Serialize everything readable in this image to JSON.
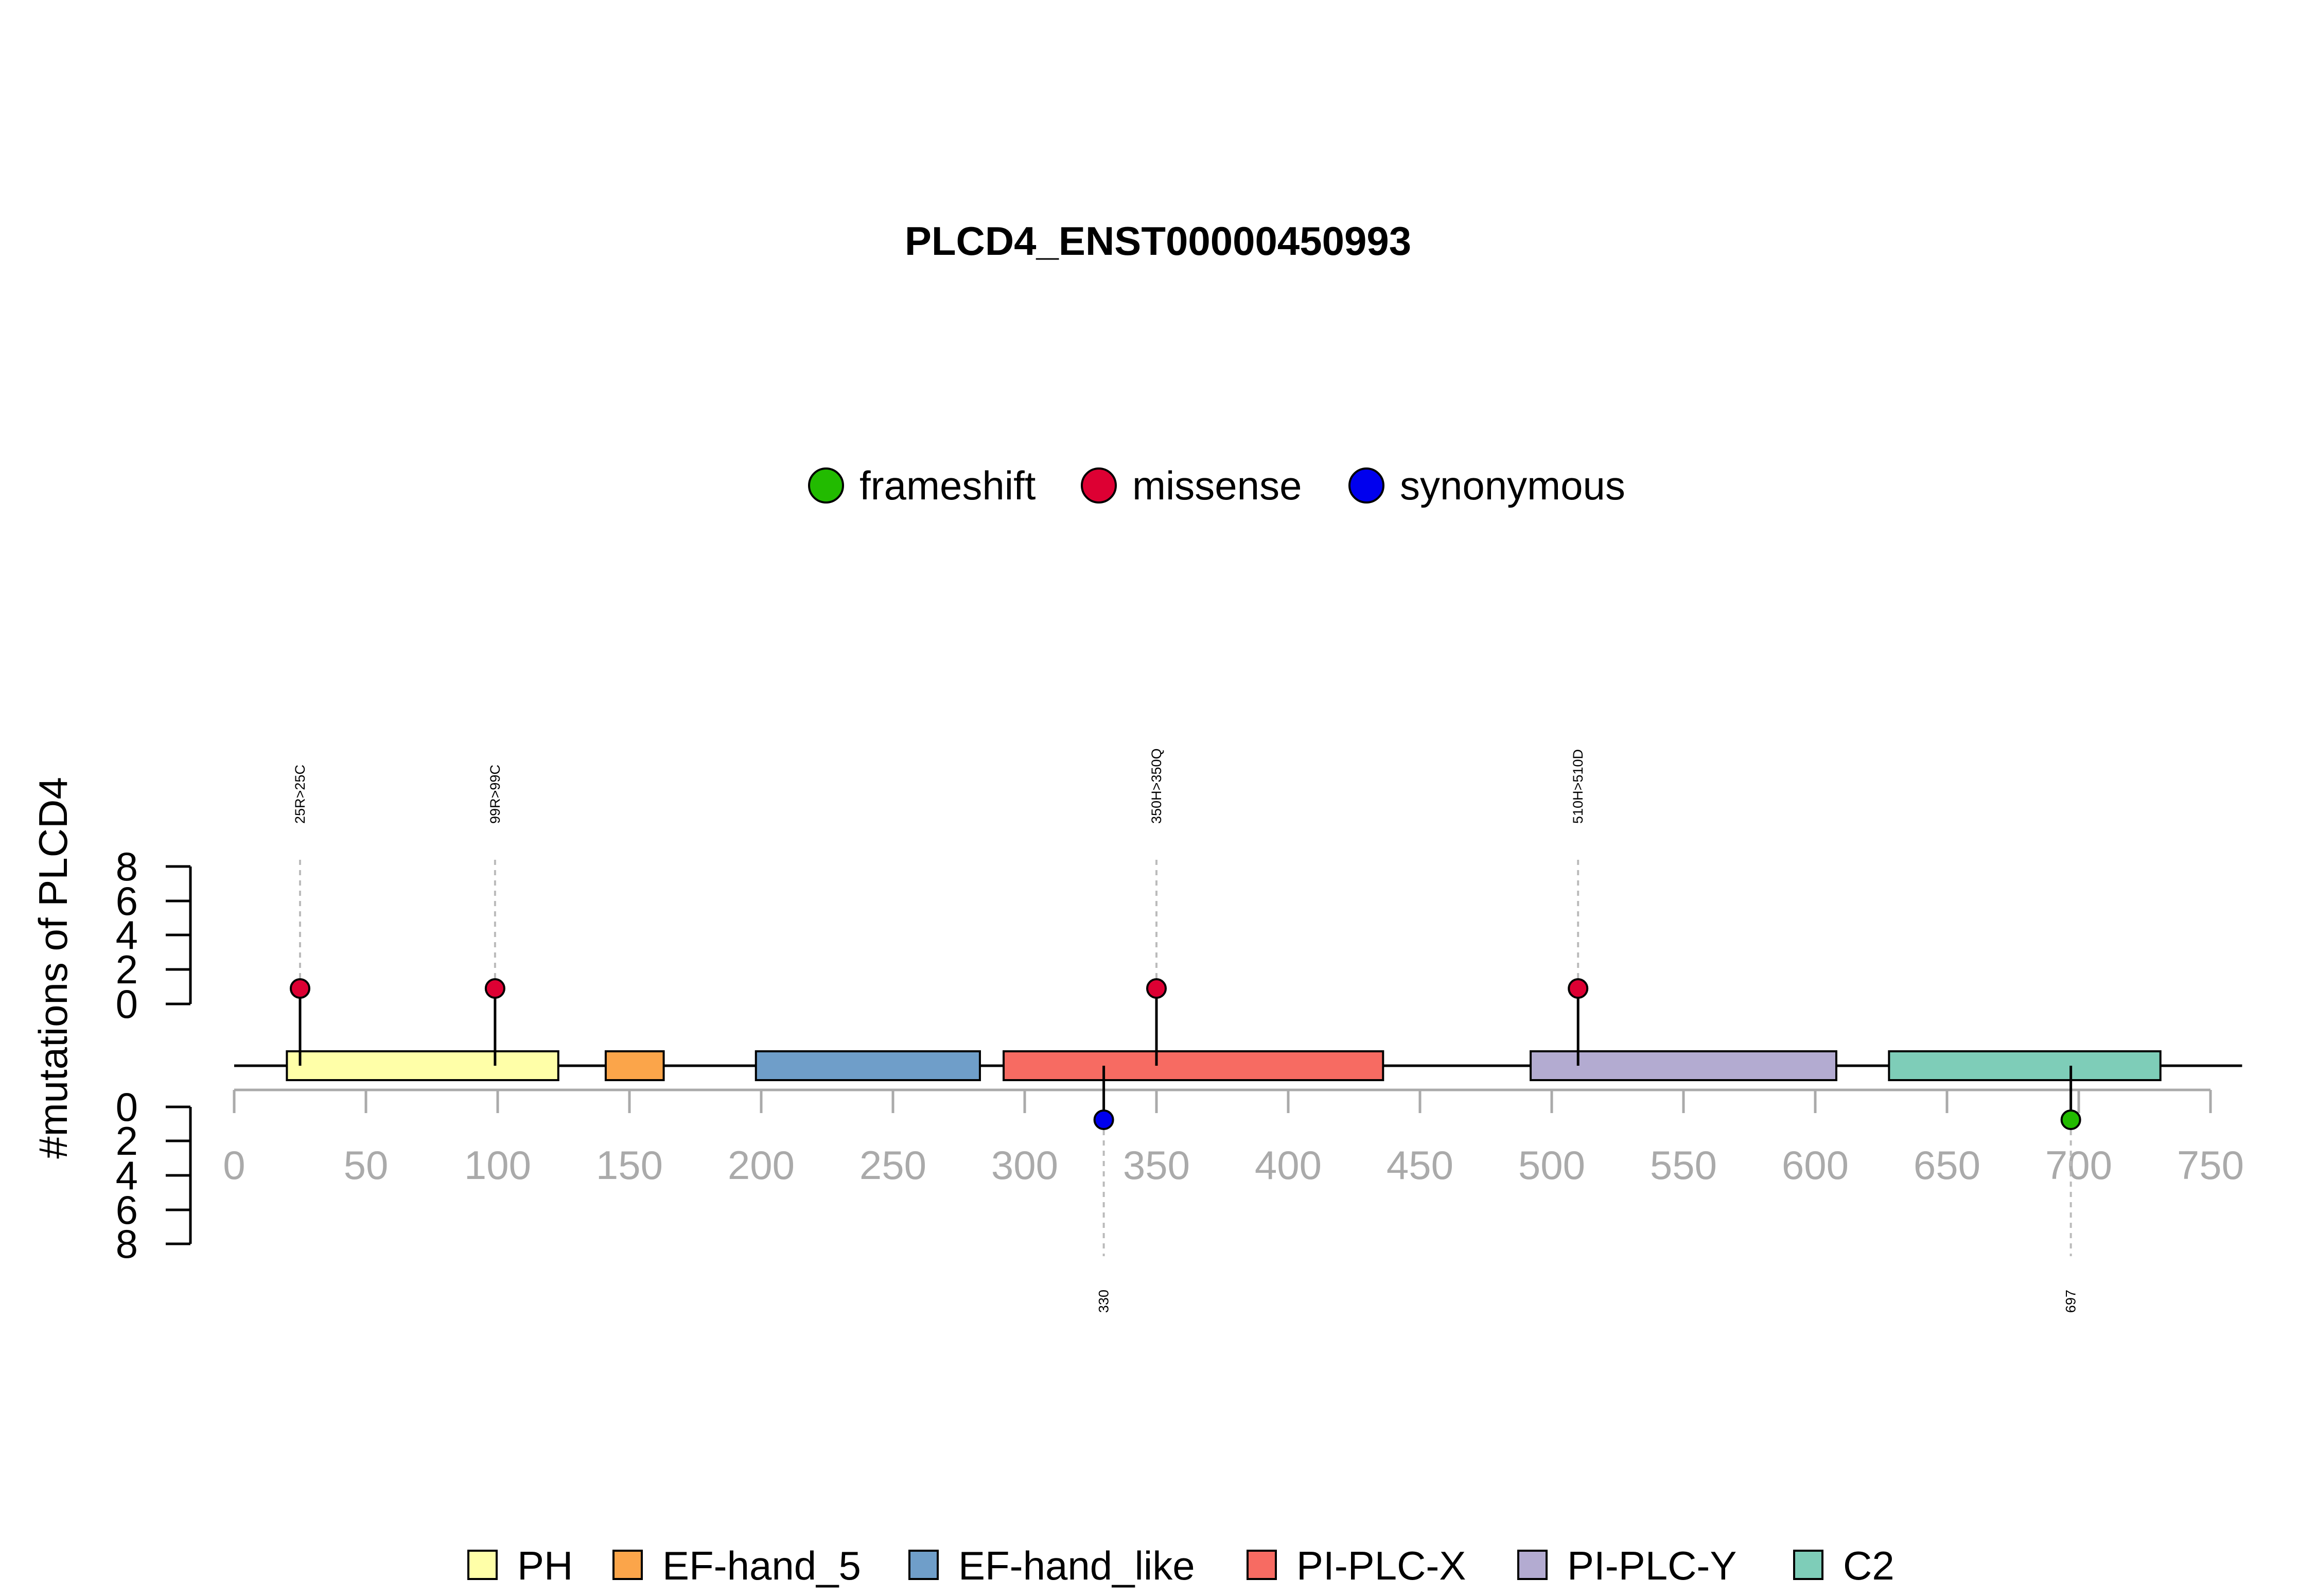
{
  "chart_data": {
    "type": "lollipop",
    "title": "PLCD4_ENST00000450993",
    "ylabel": "#mutations of PLCD4",
    "protein_length": 762,
    "xlim": [
      0,
      750
    ],
    "x_ticks": [
      "0",
      "50",
      "100",
      "150",
      "200",
      "250",
      "300",
      "350",
      "400",
      "450",
      "500",
      "550",
      "600",
      "650",
      "700",
      "750"
    ],
    "y_ticks_top": [
      "8",
      "6",
      "4",
      "2",
      "0"
    ],
    "y_ticks_bottom": [
      "0",
      "2",
      "4",
      "6",
      "8"
    ],
    "mutation_types": [
      {
        "name": "frameshift",
        "color": "#22bb00"
      },
      {
        "name": "missense",
        "color": "#dd0033"
      },
      {
        "name": "synonymous",
        "color": "#0000ee"
      }
    ],
    "mutations": [
      {
        "position": 25,
        "label": "25R>25C",
        "type": "missense",
        "count": 1,
        "side": "top"
      },
      {
        "position": 99,
        "label": "99R>99C",
        "type": "missense",
        "count": 1,
        "side": "top"
      },
      {
        "position": 350,
        "label": "350H>350Q",
        "type": "missense",
        "count": 1,
        "side": "top"
      },
      {
        "position": 510,
        "label": "510H>510D",
        "type": "missense",
        "count": 1,
        "side": "top"
      },
      {
        "position": 330,
        "label": "330",
        "type": "synonymous",
        "count": 1,
        "side": "bottom"
      },
      {
        "position": 697,
        "label": "697",
        "type": "frameshift",
        "count": 1,
        "side": "bottom"
      }
    ],
    "domains": [
      {
        "name": "PH",
        "start": 20,
        "end": 123,
        "color": "#ffffa8"
      },
      {
        "name": "EF-hand_5",
        "start": 141,
        "end": 163,
        "color": "#fba54a"
      },
      {
        "name": "EF-hand_like",
        "start": 198,
        "end": 283,
        "color": "#6f9ec9"
      },
      {
        "name": "PI-PLC-X",
        "start": 292,
        "end": 436,
        "color": "#f76b62"
      },
      {
        "name": "PI-PLC-Y",
        "start": 492,
        "end": 608,
        "color": "#b3abd1"
      },
      {
        "name": "C2",
        "start": 628,
        "end": 731,
        "color": "#7ecdb8"
      }
    ]
  }
}
